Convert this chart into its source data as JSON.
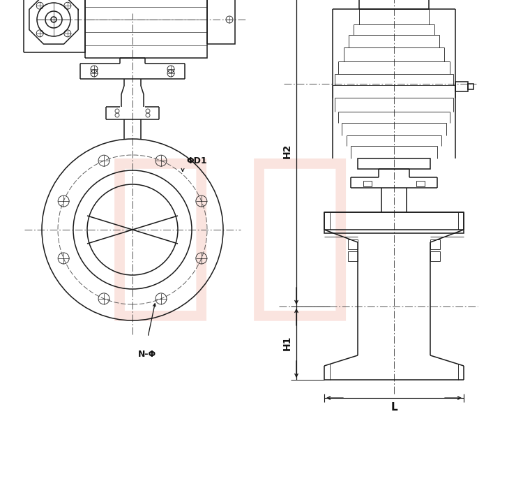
{
  "bg_color": "#ffffff",
  "line_color": "#1a1a1a",
  "fig_width": 7.5,
  "fig_height": 7.09,
  "dpi": 100,
  "label_H2": "H2",
  "label_H1": "H1",
  "label_L": "L",
  "label_phiD1": "ΦD1",
  "label_N": "N-Φ",
  "watermark_color": "#f0a898",
  "watermark_alpha": 0.3
}
